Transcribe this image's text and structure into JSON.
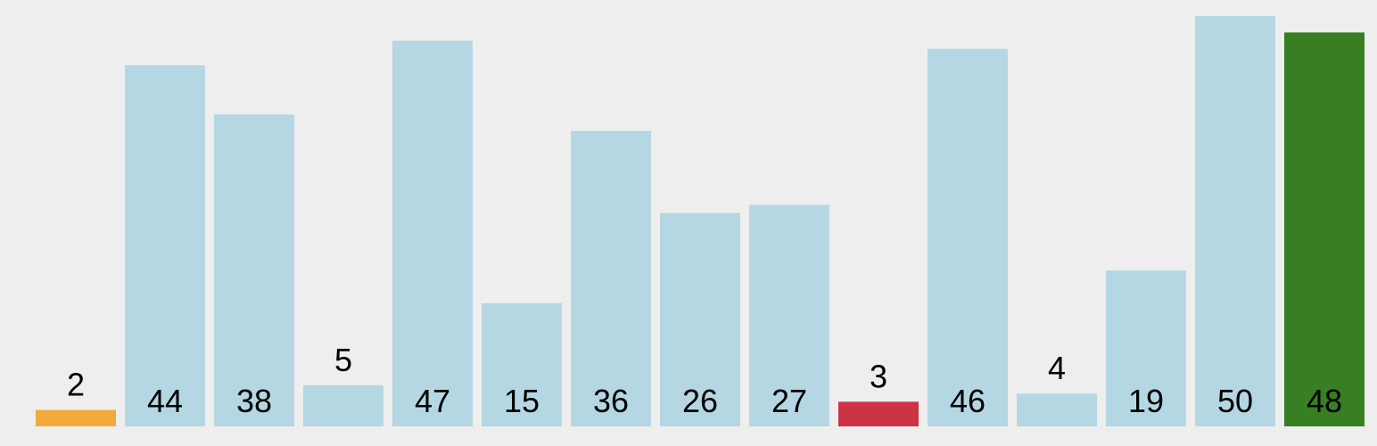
{
  "chart_data": {
    "type": "bar",
    "values": [
      2,
      44,
      38,
      5,
      47,
      15,
      36,
      26,
      27,
      3,
      46,
      4,
      19,
      50,
      48
    ],
    "labels": [
      "2",
      "44",
      "38",
      "5",
      "47",
      "15",
      "36",
      "26",
      "27",
      "3",
      "46",
      "4",
      "19",
      "50",
      "48"
    ],
    "ylim": [
      0,
      50
    ],
    "grid": false,
    "title": "",
    "xlabel": "",
    "ylabel": ""
  },
  "colors": {
    "background": "#eeeeee",
    "default_bar": "#b5d7e3",
    "highlight_orange": "#f2a93b",
    "highlight_red": "#cc3344",
    "highlight_green": "#387f23",
    "label_text": "#000000"
  },
  "bar_states": [
    "orange",
    "default",
    "default",
    "default",
    "default",
    "default",
    "default",
    "default",
    "default",
    "red",
    "default",
    "default",
    "default",
    "default",
    "green"
  ]
}
